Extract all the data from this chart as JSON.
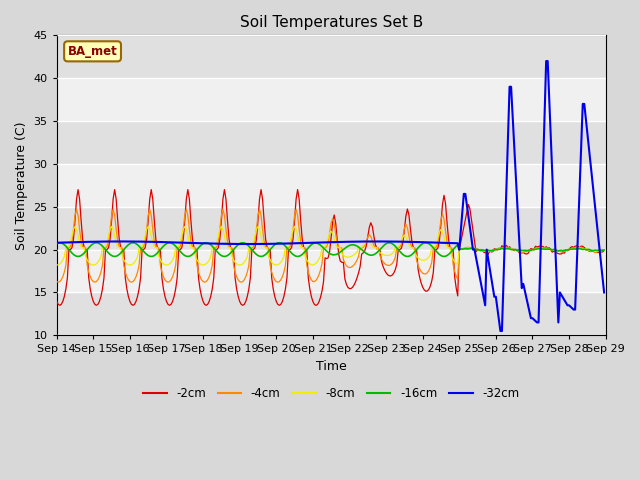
{
  "title": "Soil Temperatures Set B",
  "xlabel": "Time",
  "ylabel": "Soil Temperature (C)",
  "ylim": [
    10,
    45
  ],
  "yticks": [
    10,
    15,
    20,
    25,
    30,
    35,
    40,
    45
  ],
  "xtick_labels": [
    "Sep 14",
    "Sep 15",
    "Sep 16",
    "Sep 17",
    "Sep 18",
    "Sep 19",
    "Sep 20",
    "Sep 21",
    "Sep 22",
    "Sep 23",
    "Sep 24",
    "Sep 25",
    "Sep 26",
    "Sep 27",
    "Sep 28",
    "Sep 29"
  ],
  "colors": {
    "-2cm": "#dd0000",
    "-4cm": "#ff8800",
    "-8cm": "#eeee00",
    "-16cm": "#00bb00",
    "-32cm": "#0000ee"
  },
  "legend_labels": [
    "-2cm",
    "-4cm",
    "-8cm",
    "-16cm",
    "-32cm"
  ],
  "annotation_text": "BA_met",
  "bg_color": "#d8d8d8",
  "plot_bg_color_light": "#f0f0f0",
  "plot_bg_color_dark": "#e0e0e0",
  "band_edges": [
    10,
    15,
    20,
    25,
    30,
    35,
    40,
    45
  ]
}
